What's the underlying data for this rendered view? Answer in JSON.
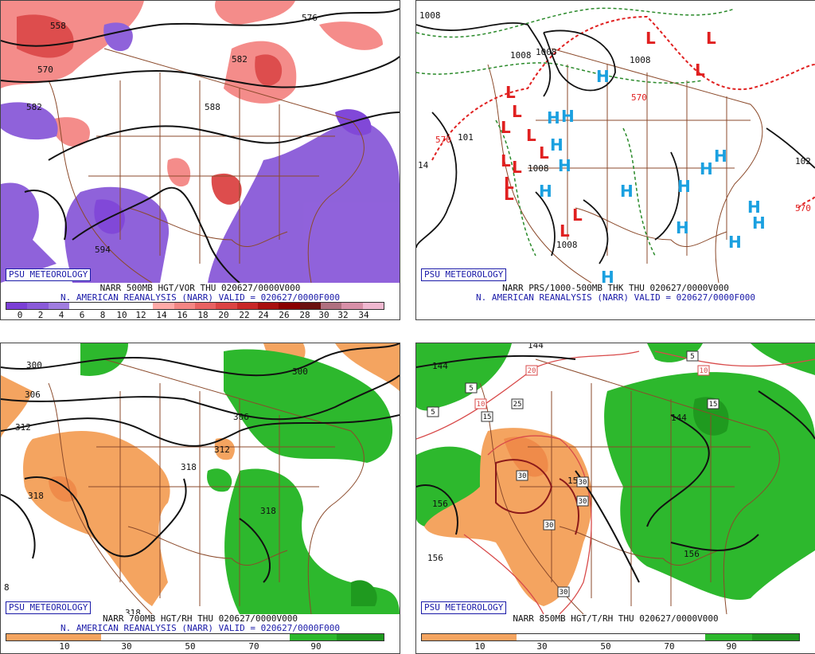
{
  "logo": "PSU METEOROLOGY",
  "panels": {
    "p500": {
      "caption1": "NARR 500MB HGT/VOR THU 020627/0000V000",
      "caption2": "N. AMERICAN REANALYSIS (NARR) VALID = 020627/0000F000",
      "contour_labels": [
        "558",
        "576",
        "582",
        "570",
        "582",
        "588",
        "594"
      ],
      "colorbar_ticks": [
        "0",
        "2",
        "4",
        "6",
        "8",
        "10",
        "12",
        "14",
        "16",
        "18",
        "20",
        "22",
        "24",
        "26",
        "28",
        "30",
        "32",
        "34"
      ],
      "colors": [
        "#7b3fd6",
        "#8a5ad9",
        "#a07de0",
        "#ffffff",
        "#ffffff",
        "#ffffff",
        "#ffffff",
        "#ffaaa8",
        "#f48684",
        "#e86262",
        "#dc4444",
        "#c82828",
        "#a81010",
        "#8a0000",
        "#6a1010",
        "#b07080",
        "#d890a8",
        "#f0b8d0"
      ]
    },
    "pmslp": {
      "caption1": "NARR PRS/1000-500MB THK THU 020627/0000V000",
      "caption2": "N. AMERICAN REANALYSIS (NARR) VALID = 020627/0000F000",
      "contour_labels": [
        "1008",
        "1008",
        "1008",
        "1008",
        "101",
        "570",
        "570",
        "1008",
        "1008",
        "102",
        "570",
        "14"
      ],
      "high_symbol": "H",
      "low_symbol": "L",
      "high_color": "#1aa0e0",
      "low_color": "#e02020"
    },
    "p700": {
      "caption1": "NARR 700MB HGT/RH THU 020627/0000V000",
      "caption2": "N. AMERICAN REANALYSIS (NARR) VALID = 020627/0000F000",
      "contour_labels": [
        "300",
        "300",
        "306",
        "312",
        "318",
        "306",
        "312",
        "318",
        "318",
        "318",
        "8"
      ],
      "colorbar_ticks": [
        "10",
        "30",
        "50",
        "70",
        "90"
      ]
    },
    "p850": {
      "caption1": "NARR 850MB HGT/T/RH THU 020627/0000V000",
      "contour_labels": [
        "144",
        "144",
        "144",
        "156",
        "156",
        "156",
        "150"
      ],
      "temp_labels": [
        "5",
        "5",
        "10",
        "15",
        "20",
        "25",
        "10",
        "15",
        "30",
        "30",
        "30",
        "30",
        "30",
        "5"
      ],
      "colorbar_ticks": [
        "10",
        "30",
        "50",
        "70",
        "90"
      ]
    }
  }
}
